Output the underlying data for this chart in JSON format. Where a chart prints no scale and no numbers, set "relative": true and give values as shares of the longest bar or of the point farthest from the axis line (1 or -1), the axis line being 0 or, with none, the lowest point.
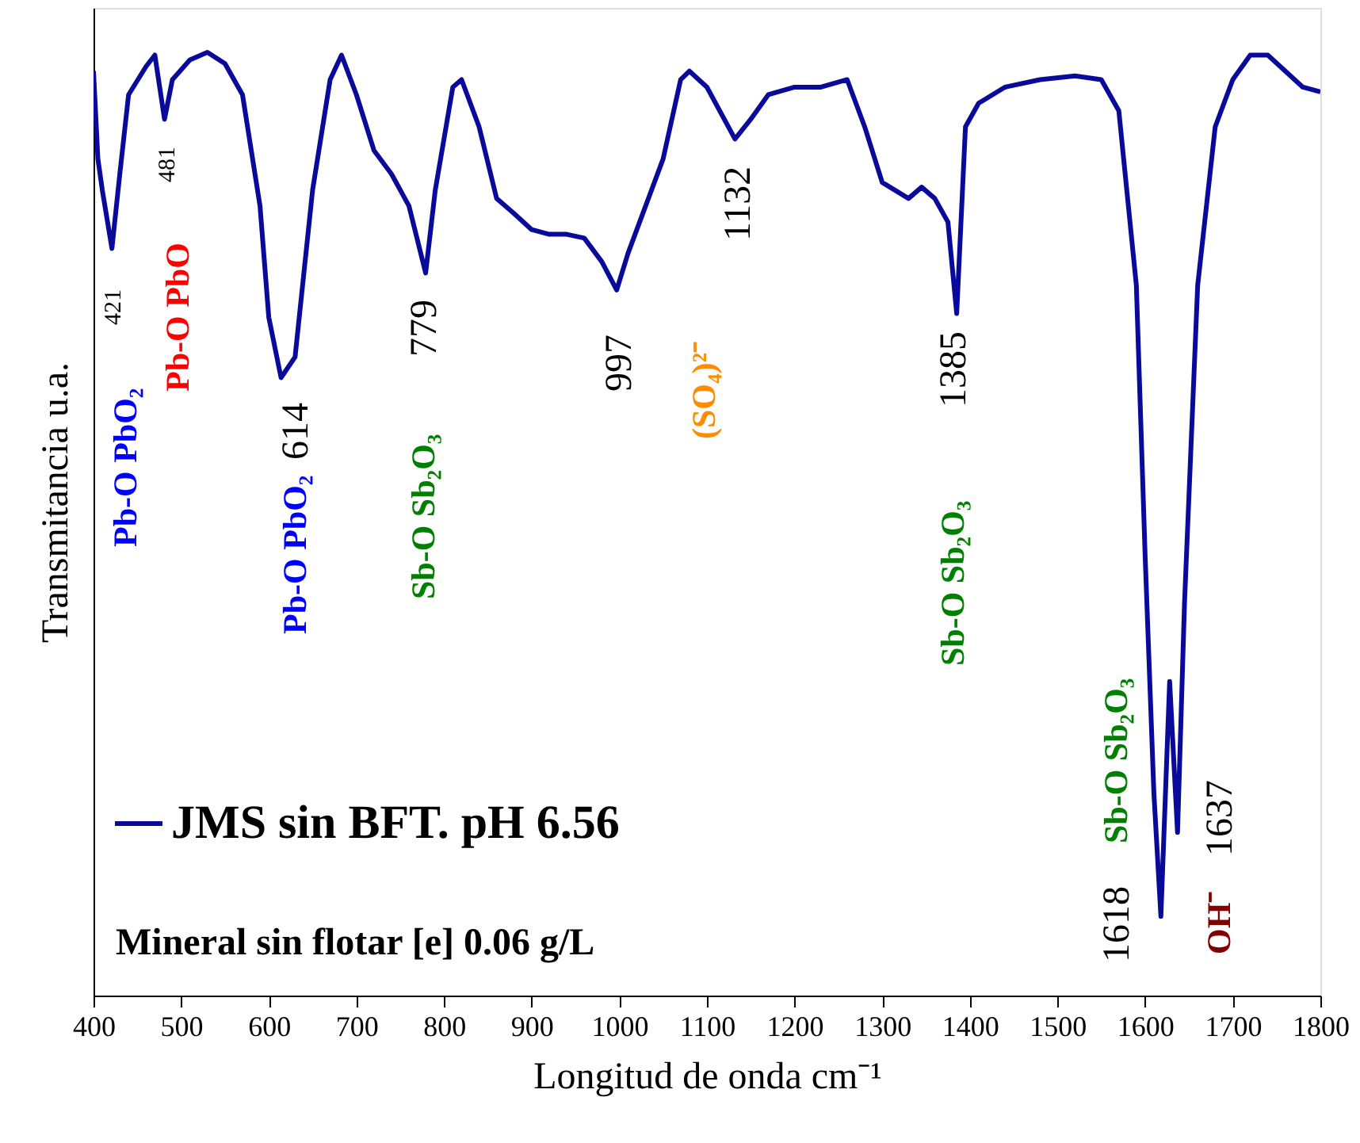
{
  "chart_data": {
    "type": "line",
    "relative": true,
    "xlabel": "Longitud de onda cm⁻¹",
    "ylabel": "Transmitancia u.a.",
    "xlim": [
      400,
      1800
    ],
    "xticks": [
      400,
      500,
      600,
      700,
      800,
      900,
      1000,
      1100,
      1200,
      1300,
      1400,
      1500,
      1600,
      1700,
      1800
    ],
    "grid": false,
    "legend": "bottom left",
    "marker": "none",
    "line_style": "solid",
    "series": [
      {
        "name": "JMS sin BFT. pH 6.56",
        "color": "#0a0a9a",
        "x": [
          400,
          405,
          410,
          421,
          430,
          440,
          460,
          470,
          481,
          490,
          510,
          530,
          550,
          570,
          590,
          600,
          614,
          630,
          650,
          670,
          683,
          700,
          720,
          740,
          760,
          779,
          790,
          810,
          820,
          840,
          860,
          880,
          900,
          920,
          940,
          960,
          980,
          997,
          1010,
          1030,
          1050,
          1070,
          1080,
          1100,
          1132,
          1150,
          1170,
          1200,
          1230,
          1260,
          1280,
          1300,
          1330,
          1345,
          1360,
          1375,
          1385,
          1395,
          1410,
          1440,
          1480,
          1520,
          1550,
          1570,
          1590,
          1600,
          1610,
          1618,
          1628,
          1637,
          1645,
          1660,
          1680,
          1700,
          1720,
          1740,
          1760,
          1780,
          1800
        ],
        "values": [
          0.98,
          0.887,
          0.854,
          0.792,
          0.871,
          0.955,
          0.985,
          0.997,
          0.929,
          0.971,
          0.992,
          1.0,
          0.988,
          0.955,
          0.837,
          0.719,
          0.655,
          0.677,
          0.854,
          0.971,
          0.997,
          0.955,
          0.896,
          0.871,
          0.837,
          0.766,
          0.854,
          0.963,
          0.971,
          0.921,
          0.845,
          0.829,
          0.812,
          0.807,
          0.807,
          0.803,
          0.778,
          0.748,
          0.787,
          0.837,
          0.887,
          0.971,
          0.98,
          0.963,
          0.908,
          0.929,
          0.955,
          0.963,
          0.963,
          0.971,
          0.921,
          0.862,
          0.845,
          0.857,
          0.845,
          0.82,
          0.723,
          0.921,
          0.946,
          0.963,
          0.971,
          0.975,
          0.971,
          0.938,
          0.753,
          0.467,
          0.215,
          0.084,
          0.333,
          0.173,
          0.417,
          0.753,
          0.921,
          0.971,
          0.997,
          0.997,
          0.98,
          0.963,
          0.958
        ]
      }
    ],
    "annotations": [
      "421",
      "481",
      "Pb-O PbO₂",
      "Pb-O PbO",
      "Pb-O PbO₂",
      "614",
      "779",
      "Sb-O Sb₂O₃",
      "997",
      "(SO₄)²⁻",
      "1132",
      "1385",
      "Sb-O Sb₂O₃",
      "Sb-O Sb₂O₃",
      "1618",
      "1637",
      "OH⁻",
      "Mineral sin flotar [e] 0.06 g/L"
    ]
  }
}
